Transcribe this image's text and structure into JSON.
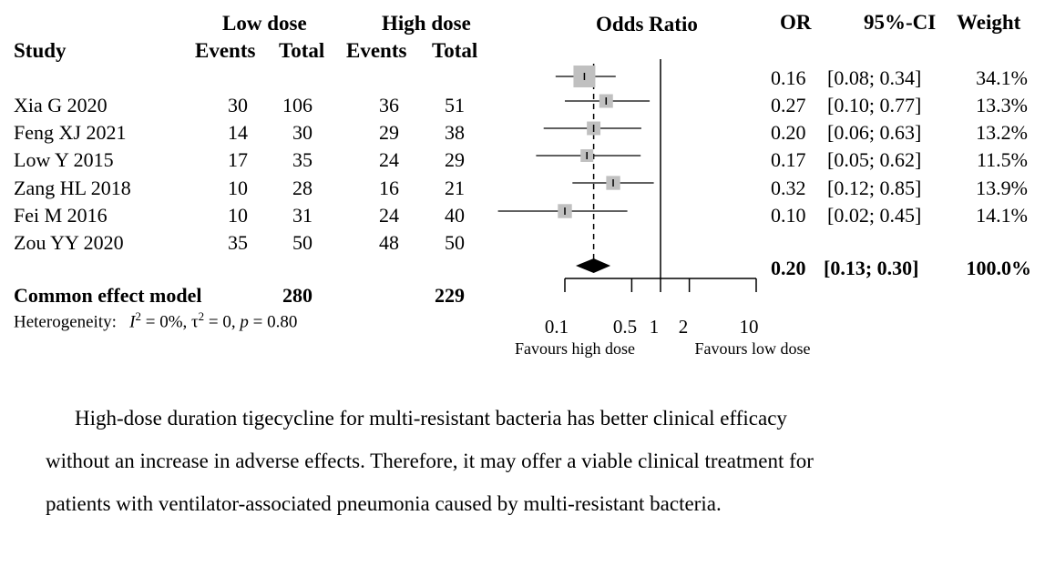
{
  "headers": {
    "study": "Study",
    "group_low": "Low dose",
    "group_high": "High dose",
    "events": "Events",
    "total": "Total",
    "plot_title": "Odds Ratio",
    "or": "OR",
    "ci": "95%-CI",
    "weight": "Weight"
  },
  "chart_data": {
    "type": "forest",
    "title": "Odds Ratio",
    "scale": "log",
    "x_ticks": [
      0.1,
      0.5,
      1,
      2,
      10
    ],
    "x_tick_labels": [
      "0.1",
      "0.5",
      "1",
      "2",
      "10"
    ],
    "xlim": [
      0.1,
      10
    ],
    "null_line": 1,
    "favours_left": "Favours high dose",
    "favours_right": "Favours low dose",
    "studies": [
      {
        "name": "Xia G 2020",
        "low_events": "30",
        "low_total": "106",
        "high_events": "36",
        "high_total": "51",
        "or": 0.16,
        "ci_low": 0.08,
        "ci_high": 0.34,
        "or_text": "0.16",
        "ci_text": "[0.08; 0.34]",
        "weight": "34.1%",
        "weight_value": 34.1
      },
      {
        "name": "Feng XJ 2021",
        "low_events": "14",
        "low_total": "30",
        "high_events": "29",
        "high_total": "38",
        "or": 0.27,
        "ci_low": 0.1,
        "ci_high": 0.77,
        "or_text": "0.27",
        "ci_text": "[0.10; 0.77]",
        "weight": "13.3%",
        "weight_value": 13.3
      },
      {
        "name": "Low Y 2015",
        "low_events": "17",
        "low_total": "35",
        "high_events": "24",
        "high_total": "29",
        "or": 0.2,
        "ci_low": 0.06,
        "ci_high": 0.63,
        "or_text": "0.20",
        "ci_text": "[0.06; 0.63]",
        "weight": "13.2%",
        "weight_value": 13.2
      },
      {
        "name": "Zang HL 2018",
        "low_events": "10",
        "low_total": "28",
        "high_events": "16",
        "high_total": "21",
        "or": 0.17,
        "ci_low": 0.05,
        "ci_high": 0.62,
        "or_text": "0.17",
        "ci_text": "[0.05; 0.62]",
        "weight": "11.5%",
        "weight_value": 11.5
      },
      {
        "name": "Fei M 2016",
        "low_events": "10",
        "low_total": "31",
        "high_events": "24",
        "high_total": "40",
        "or": 0.32,
        "ci_low": 0.12,
        "ci_high": 0.85,
        "or_text": "0.32",
        "ci_text": "[0.12; 0.85]",
        "weight": "13.9%",
        "weight_value": 13.9
      },
      {
        "name": "Zou YY 2020",
        "low_events": "35",
        "low_total": "50",
        "high_events": "48",
        "high_total": "50",
        "or": 0.1,
        "ci_low": 0.02,
        "ci_high": 0.45,
        "or_text": "0.10",
        "ci_text": "[0.02; 0.45]",
        "weight": "14.1%",
        "weight_value": 14.1
      }
    ],
    "pooled": {
      "name": "Common effect model",
      "low_total": "280",
      "high_total": "229",
      "or": 0.2,
      "ci_low": 0.13,
      "ci_high": 0.3,
      "or_text": "0.20",
      "ci_text": "[0.13; 0.30]",
      "weight": "100.0%"
    },
    "heterogeneity": {
      "label": "Heterogeneity:",
      "i2": "I",
      "i2_value": "= 0%",
      "tau2": "τ",
      "tau2_value": "= 0",
      "p": "p",
      "p_value": "= 0.80"
    },
    "colors": {
      "square": "#c0c0c0",
      "line": "#000000",
      "diamond": "#000000"
    }
  },
  "conclusion": {
    "line1": "High-dose duration tigecycline for multi-resistant bacteria has better clinical efficacy",
    "line2": "without an increase in adverse effects. Therefore, it may offer a viable clinical treatment for",
    "line3": "patients with ventilator-associated pneumonia caused by multi-resistant bacteria."
  }
}
